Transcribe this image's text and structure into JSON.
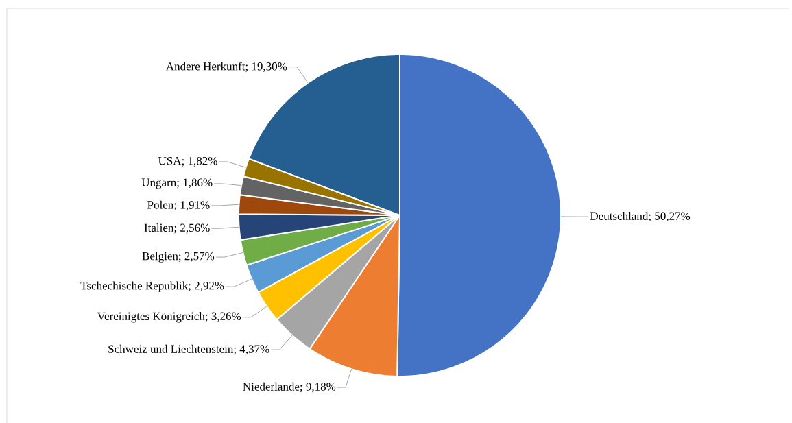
{
  "chart_data": {
    "type": "pie",
    "categories": [
      "Deutschland",
      "Niederlande",
      "Schweiz und Liechtenstein",
      "Vereinigtes Königreich",
      "Tschechische Republik",
      "Belgien",
      "Italien",
      "Polen",
      "Ungarn",
      "USA",
      "Andere Herkunft"
    ],
    "values": [
      50.27,
      9.18,
      4.37,
      3.26,
      2.92,
      2.57,
      2.56,
      1.91,
      1.86,
      1.82,
      19.3
    ],
    "value_labels": [
      "; 50,27%",
      "; 9,18%",
      "; 4,37%",
      "; 3,26%",
      "; 2,92%",
      "; 2,57%",
      "; 2,56%",
      "; 1,91%",
      "; 1,86%",
      "; 1,82%",
      "; 19,30%"
    ],
    "colors": [
      "#4472c4",
      "#ed7d31",
      "#a5a5a5",
      "#ffc000",
      "#5b9bd5",
      "#70ad47",
      "#264478",
      "#9e480e",
      "#636363",
      "#997300",
      "#255e91"
    ]
  }
}
